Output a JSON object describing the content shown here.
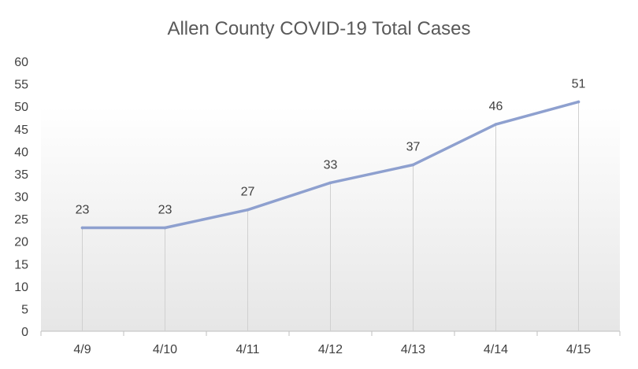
{
  "chart_data": {
    "type": "line",
    "title": "Allen County COVID-19 Total Cases",
    "categories": [
      "4/9",
      "4/10",
      "4/11",
      "4/12",
      "4/13",
      "4/14",
      "4/15"
    ],
    "series": [
      {
        "values": [
          23,
          23,
          27,
          33,
          37,
          46,
          51
        ]
      }
    ],
    "ylim": [
      0,
      60
    ],
    "yticks": [
      0,
      5,
      10,
      15,
      20,
      25,
      30,
      35,
      40,
      45,
      50,
      55,
      60
    ],
    "xlabel": "",
    "ylabel": "",
    "data_labels": true,
    "drop_lines": true,
    "legend": "none",
    "colors": {
      "series": "#8ea0cf",
      "gradient_top": "#ffffff",
      "gradient_bottom": "#e6e6e6"
    }
  }
}
